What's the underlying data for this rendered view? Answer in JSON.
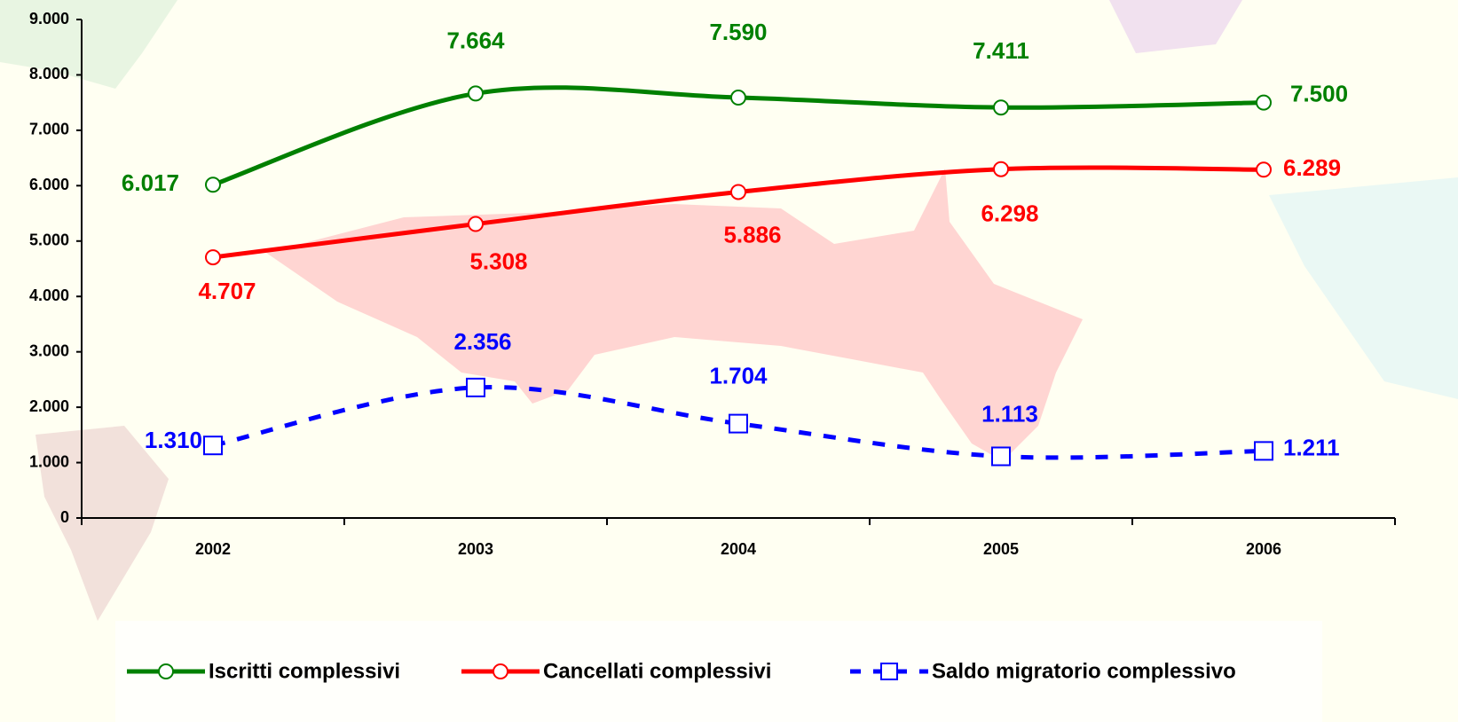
{
  "chart_data": {
    "type": "line",
    "categories": [
      "2002",
      "2003",
      "2004",
      "2005",
      "2006"
    ],
    "series": [
      {
        "name": "Iscritti complessivi",
        "color": "#008000",
        "marker": "circle",
        "dash": false,
        "values": [
          6017,
          7664,
          7590,
          7411,
          7500
        ],
        "value_labels": [
          "6.017",
          "7.664",
          "7.590",
          "7.411",
          "7.500"
        ]
      },
      {
        "name": "Cancellati complessivi",
        "color": "#ff0000",
        "marker": "circle",
        "dash": false,
        "values": [
          4707,
          5308,
          5886,
          6298,
          6289
        ],
        "value_labels": [
          "4.707",
          "5.308",
          "5.886",
          "6.298",
          "6.289"
        ]
      },
      {
        "name": "Saldo migratorio complessivo",
        "color": "#0000ff",
        "marker": "square",
        "dash": true,
        "values": [
          1310,
          2356,
          1704,
          1113,
          1211
        ],
        "value_labels": [
          "1.310",
          "2.356",
          "1.704",
          "1.113",
          "1.211"
        ]
      }
    ],
    "ylim": [
      0,
      9000
    ],
    "yticks": [
      0,
      {
        "value": 1000,
        "label": "1.000"
      },
      {
        "value": 2000,
        "label": "2.000"
      },
      {
        "value": 3000,
        "label": "3.000"
      },
      {
        "value": 4000,
        "label": "4.000"
      },
      {
        "value": 5000,
        "label": "5.000"
      },
      {
        "value": 6000,
        "label": "6.000"
      },
      {
        "value": 7000,
        "label": "7.000"
      },
      {
        "value": 8000,
        "label": "8.000"
      },
      {
        "value": 9000,
        "label": "9.000"
      }
    ],
    "legend": "bottom"
  }
}
